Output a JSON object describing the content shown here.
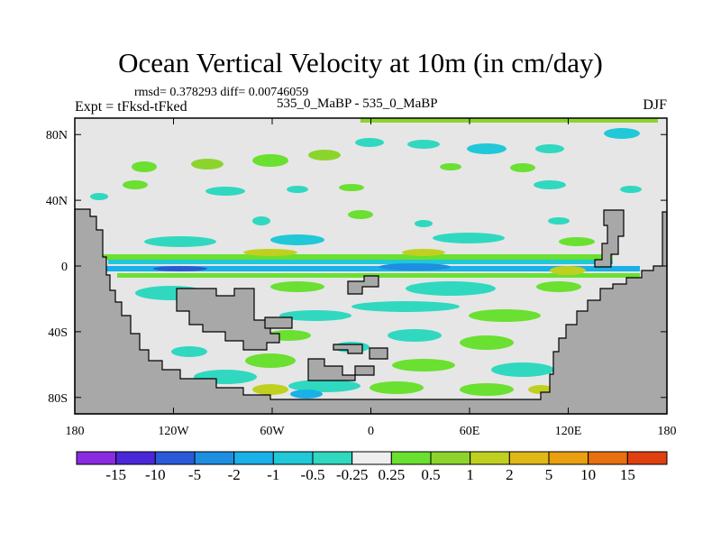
{
  "chart_data": {
    "type": "contour-map",
    "title": "Ocean Vertical Velocity at 10m (in cm/day)",
    "stats": "rmsd= 0.378293 diff= 0.00746059",
    "left_label": "Expt = tFksd-tFked",
    "center_label": "535_0_MaBP - 535_0_MaBP",
    "right_label": "DJF",
    "x_ticks": [
      "180",
      "120W",
      "60W",
      "0",
      "60E",
      "120E",
      "180"
    ],
    "x_values": [
      -180,
      -120,
      -60,
      0,
      60,
      120,
      180
    ],
    "y_ticks": [
      "80N",
      "40N",
      "0",
      "40S",
      "80S"
    ],
    "y_values": [
      80,
      40,
      0,
      -40,
      -80
    ],
    "xlim": [
      -180,
      180
    ],
    "ylim": [
      -90,
      90
    ],
    "colorbar": {
      "labels": [
        "-15",
        "-10",
        "-5",
        "-2",
        "-1",
        "-0.5",
        "-0.25",
        "0.25",
        "0.5",
        "1",
        "2",
        "5",
        "10",
        "15"
      ],
      "colors": [
        "#8a2be2",
        "#4a28d8",
        "#2a5ad8",
        "#1e8ee0",
        "#1ab0e8",
        "#20c8d8",
        "#30d8c0",
        "#eeeeee",
        "#6ae030",
        "#8cd42c",
        "#c0d020",
        "#e0b818",
        "#e8a010",
        "#e87010",
        "#e04010"
      ]
    }
  }
}
